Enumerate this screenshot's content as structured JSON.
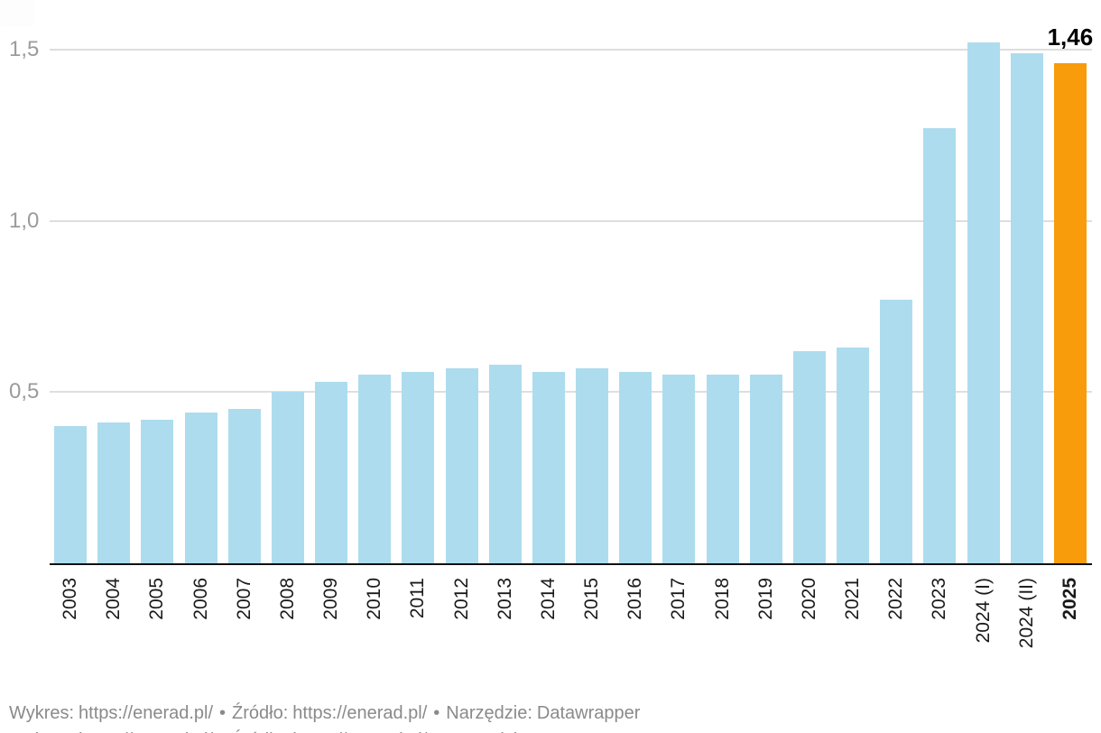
{
  "chart_data": {
    "type": "bar",
    "categories": [
      "2003",
      "2004",
      "2005",
      "2006",
      "2007",
      "2008",
      "2009",
      "2010",
      "2011",
      "2012",
      "2013",
      "2014",
      "2015",
      "2016",
      "2017",
      "2018",
      "2019",
      "2020",
      "2021",
      "2022",
      "2023",
      "2024 (I)",
      "2024 (II)",
      "2025"
    ],
    "values": [
      0.4,
      0.41,
      0.42,
      0.44,
      0.45,
      0.5,
      0.53,
      0.55,
      0.56,
      0.57,
      0.58,
      0.56,
      0.57,
      0.56,
      0.55,
      0.55,
      0.55,
      0.62,
      0.63,
      0.77,
      1.27,
      1.52,
      1.49,
      1.46
    ],
    "ylim": [
      0,
      1.55
    ],
    "yticks": [
      {
        "value": 0.5,
        "label": "0,5"
      },
      {
        "value": 1.0,
        "label": "1,0"
      },
      {
        "value": 1.5,
        "label": "1,5"
      }
    ],
    "grid": "horizontal",
    "legend": "none",
    "x_tick_rotation": -90,
    "bar_color": "#ADDCEE",
    "highlight_color": "#F89C0C",
    "highlight_index": 23,
    "value_label": {
      "category": "2025",
      "text": "1,46"
    }
  },
  "footer": {
    "chart_label": "Wykres:",
    "chart_link": "https://enerad.pl/",
    "separator": "•",
    "source_label": "Źródło:",
    "source_link": "https://enerad.pl/",
    "tool_label": "Narzędzie:",
    "tool_link": "Datawrapper"
  }
}
